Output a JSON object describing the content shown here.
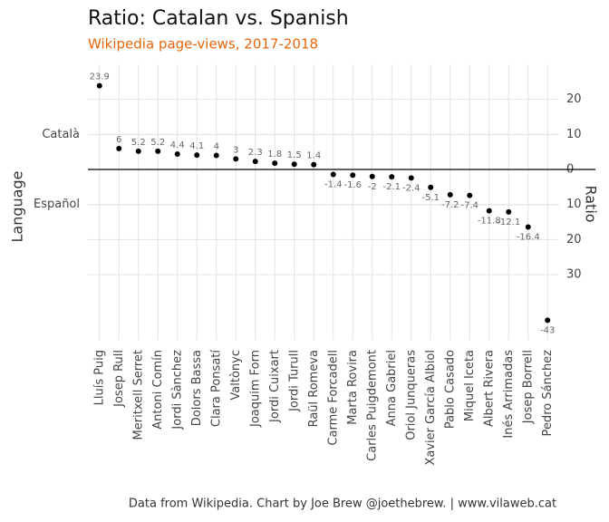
{
  "chart_data": {
    "type": "dot",
    "title": "Ratio: Catalan vs. Spanish",
    "subtitle": "Wikipedia page-views, 2017-2018",
    "caption": "Data from Wikipedia. Chart by Joe Brew @joethebrew. | www.vilaweb.cat",
    "ylabel": "Language",
    "y2label": "Ratio",
    "categories": [
      "Lluís Puig",
      "Josep Rull",
      "Meritxell Serret",
      "Antoni Comín",
      "Jordi Sànchez",
      "Dolors Bassa",
      "Clara Ponsatí",
      "Valtònyc",
      "Joaquim Forn",
      "Jordi Cuixart",
      "Jordi Turull",
      "Raül Romeva",
      "Carme Forcadell",
      "Marta Rovira",
      "Carles Puigdemont",
      "Anna Gabriel",
      "Oriol Junqueras",
      "Xavier García Albiol",
      "Pablo Casado",
      "Miquel Iceta",
      "Albert Rivera",
      "Inés Arrimadas",
      "Josep Borrell",
      "Pedro Sánchez"
    ],
    "values": [
      23.9,
      6,
      5.2,
      5.2,
      4.4,
      4.1,
      4,
      3,
      2.3,
      1.8,
      1.5,
      1.4,
      -1.4,
      -1.6,
      -2,
      -2.1,
      -2.4,
      -5.1,
      -7.2,
      -7.4,
      -11.8,
      -12.1,
      -16.4,
      -43
    ],
    "color": "#000000",
    "ylim": [
      -48.6,
      30
    ],
    "yticks": [
      20,
      10,
      0,
      {
        "value": -10,
        "label": "10"
      },
      {
        "value": -20,
        "label": "20"
      },
      {
        "value": -30,
        "label": "30"
      }
    ],
    "yticks_left": [
      {
        "value": 10,
        "label": "Català"
      },
      {
        "value": -10,
        "label": "Español"
      }
    ],
    "hline": 0,
    "grid": true
  }
}
